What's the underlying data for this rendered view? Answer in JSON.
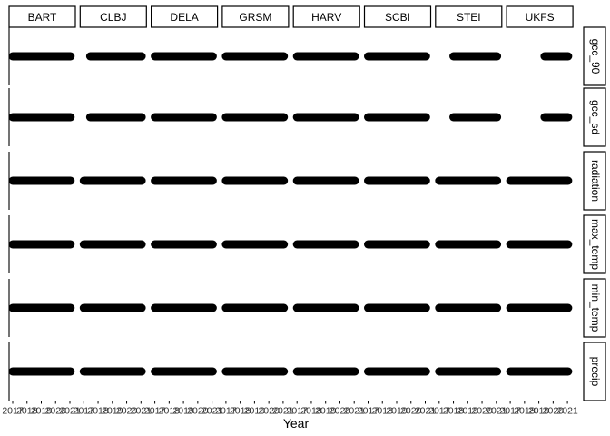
{
  "chart_data": {
    "type": "scatter",
    "title": "",
    "xlabel": "Year",
    "ylabel": "",
    "xlim": [
      2017,
      2021
    ],
    "x_ticks": [
      "2017",
      "2018",
      "2019",
      "2020",
      "2021"
    ],
    "x_tick_labels_drawn_on_axis": "2017  2018  2019  2020  2021",
    "grid": false,
    "legend": "none",
    "colors": {
      "points": "#000000",
      "strip_border": "#000000",
      "background": "#ffffff"
    },
    "sites": [
      "BART",
      "CLBJ",
      "DELA",
      "GRSM",
      "HARV",
      "SCBI",
      "STEI",
      "UKFS"
    ],
    "variables": [
      "gcc_90",
      "gcc_sd",
      "radiation",
      "max_temp",
      "min_temp",
      "precip"
    ],
    "coverage_note": "Each panel shows daily observations plotted at a constant position; the filled band spans the years with data.",
    "coverage": {
      "gcc_90": [
        [
          2017.0,
          2021.05
        ],
        [
          2017.45,
          2021.05
        ],
        [
          2017.0,
          2021.05
        ],
        [
          2017.0,
          2021.05
        ],
        [
          2017.0,
          2021.05
        ],
        [
          2017.0,
          2021.05
        ],
        [
          2018.0,
          2021.05
        ],
        [
          2019.4,
          2021.05
        ]
      ],
      "gcc_sd": [
        [
          2017.0,
          2021.05
        ],
        [
          2017.45,
          2021.05
        ],
        [
          2017.0,
          2021.05
        ],
        [
          2017.0,
          2021.05
        ],
        [
          2017.0,
          2021.05
        ],
        [
          2017.0,
          2021.05
        ],
        [
          2018.0,
          2021.05
        ],
        [
          2019.4,
          2021.05
        ]
      ],
      "radiation": [
        [
          2017.0,
          2021.05
        ],
        [
          2017.0,
          2021.05
        ],
        [
          2017.0,
          2021.05
        ],
        [
          2017.0,
          2021.05
        ],
        [
          2017.0,
          2021.05
        ],
        [
          2017.0,
          2021.05
        ],
        [
          2017.0,
          2021.05
        ],
        [
          2017.0,
          2021.05
        ]
      ],
      "max_temp": [
        [
          2017.0,
          2021.05
        ],
        [
          2017.0,
          2021.05
        ],
        [
          2017.0,
          2021.05
        ],
        [
          2017.0,
          2021.05
        ],
        [
          2017.0,
          2021.05
        ],
        [
          2017.0,
          2021.05
        ],
        [
          2017.0,
          2021.05
        ],
        [
          2017.0,
          2021.05
        ]
      ],
      "min_temp": [
        [
          2017.0,
          2021.05
        ],
        [
          2017.0,
          2021.05
        ],
        [
          2017.0,
          2021.05
        ],
        [
          2017.0,
          2021.05
        ],
        [
          2017.0,
          2021.05
        ],
        [
          2017.0,
          2021.05
        ],
        [
          2017.0,
          2021.05
        ],
        [
          2017.0,
          2021.05
        ]
      ],
      "precip": [
        [
          2017.0,
          2021.05
        ],
        [
          2017.0,
          2021.05
        ],
        [
          2017.0,
          2021.05
        ],
        [
          2017.0,
          2021.05
        ],
        [
          2017.0,
          2021.05
        ],
        [
          2017.0,
          2021.05
        ],
        [
          2017.0,
          2021.05
        ],
        [
          2017.0,
          2021.05
        ]
      ]
    }
  }
}
